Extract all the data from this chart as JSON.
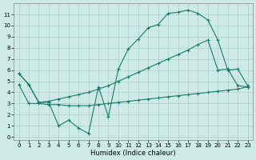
{
  "xlabel": "Humidex (Indice chaleur)",
  "x_ticks": [
    0,
    1,
    2,
    3,
    4,
    5,
    6,
    7,
    8,
    9,
    10,
    11,
    12,
    13,
    14,
    15,
    16,
    17,
    18,
    19,
    20,
    21,
    22,
    23
  ],
  "ylim": [
    -0.3,
    12
  ],
  "xlim": [
    -0.5,
    23.5
  ],
  "y_ticks": [
    0,
    1,
    2,
    3,
    4,
    5,
    6,
    7,
    8,
    9,
    10,
    11
  ],
  "line_color": "#1a7a6e",
  "bg_color": "#ceeae7",
  "grid_color": "#aacfcc",
  "line1_y": [
    5.7,
    4.7,
    3.1,
    3.1,
    1.0,
    1.5,
    0.8,
    0.3,
    4.5,
    1.8,
    6.1,
    7.9,
    8.8,
    9.8,
    10.1,
    11.1,
    11.2,
    11.4,
    11.1,
    10.5,
    8.7,
    6.0,
    6.1,
    4.6
  ],
  "line2_y": [
    5.7,
    4.7,
    3.1,
    3.2,
    3.4,
    3.6,
    3.8,
    4.0,
    4.3,
    4.6,
    5.0,
    5.4,
    5.8,
    6.2,
    6.6,
    7.0,
    7.4,
    7.8,
    8.3,
    8.7,
    6.0,
    6.1,
    4.6,
    4.5
  ],
  "line3_y": [
    4.7,
    3.0,
    3.0,
    2.9,
    2.9,
    2.8,
    2.8,
    2.8,
    2.9,
    3.0,
    3.1,
    3.2,
    3.3,
    3.4,
    3.5,
    3.6,
    3.7,
    3.8,
    3.9,
    4.0,
    4.1,
    4.2,
    4.3,
    4.5
  ],
  "marker": "+"
}
